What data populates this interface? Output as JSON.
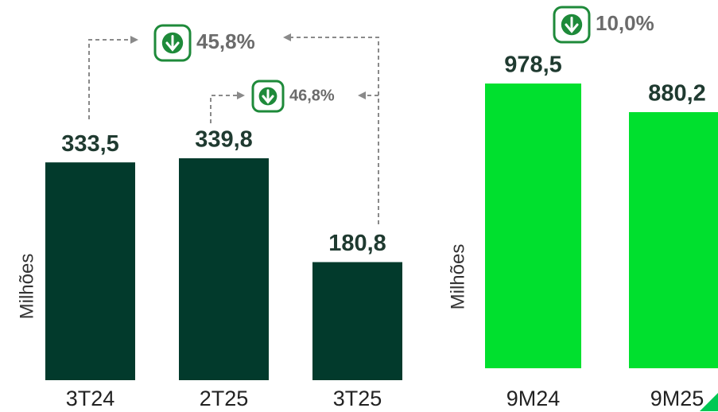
{
  "chart_data": [
    {
      "type": "bar",
      "y_label": "Milhões",
      "categories": [
        "3T24",
        "2T25",
        "3T25"
      ],
      "values": [
        333.5,
        339.8,
        180.8
      ],
      "value_labels": [
        "333,5",
        "339,8",
        "180,8"
      ],
      "color": "#023a2c",
      "annotations": [
        "45,8%",
        "46,8%"
      ]
    },
    {
      "type": "bar",
      "y_label": "Milhões",
      "categories": [
        "9M24",
        "9M25"
      ],
      "values": [
        978.5,
        880.2
      ],
      "value_labels": [
        "978,5",
        "880,2"
      ],
      "color": "#00e02e",
      "annotations": [
        "10,0%"
      ]
    }
  ]
}
